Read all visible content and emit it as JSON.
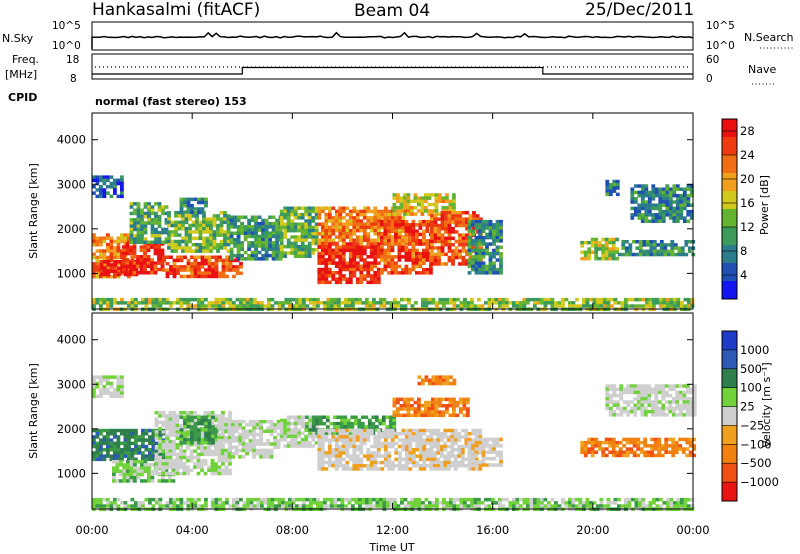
{
  "header": {
    "station": "Hankasalmi (fitACF)",
    "beam": "Beam 04",
    "date": "25/Dec/2011"
  },
  "strip": {
    "nsky_label": "N.Sky",
    "nsky_top_tick": "10^5",
    "nsky_bottom_tick": "10^0",
    "nsearch_label": "N.Search",
    "nsearch_top_tick": "10^5",
    "nsearch_bottom_tick": "10^0",
    "freq_label": "Freq.",
    "freq_unit": "[MHz]",
    "freq_top_tick": "18",
    "freq_bottom_tick": "8",
    "nave_label": "Nave",
    "nave_top_tick": "60",
    "nave_bottom_tick": "0",
    "cpid_label": "CPID",
    "cpid_text": "normal (fast stereo) 153"
  },
  "colors": {
    "power": [
      "#1414ee",
      "#1e50b4",
      "#2c7d8c",
      "#3c9a5a",
      "#64b432",
      "#d2c81e",
      "#f0a01e",
      "#f06e14",
      "#ee3a10",
      "#e81010"
    ],
    "velocity": [
      "#1e3cc8",
      "#2c5ab4",
      "#2f7f4c",
      "#3a9a48",
      "#72d23c",
      "#cfcfcf",
      "#cfcfcf",
      "#f0a020",
      "#f08010",
      "#f05014",
      "#e81414"
    ]
  },
  "chart_data": [
    {
      "type": "heatmap",
      "name": "power",
      "xlabel": "",
      "ylabel": "Slant Range [km]",
      "x_ticks": [
        "00:00",
        "04:00",
        "08:00",
        "12:00",
        "16:00",
        "20:00",
        "00:00"
      ],
      "xlim": [
        0,
        24
      ],
      "ylim": [
        200,
        4600
      ],
      "y_ticks": [
        "1000",
        "2000",
        "3000",
        "4000"
      ],
      "colorbar": {
        "label": "Power [dB]",
        "ticks": [
          "4",
          "8",
          "12",
          "16",
          "20",
          "24",
          "28"
        ],
        "range": [
          0,
          30
        ]
      },
      "regions": [
        {
          "t": [
            0.0,
            1.6
          ],
          "r": [
            900,
            1900
          ],
          "value": 22
        },
        {
          "t": [
            0.3,
            1.8
          ],
          "r": [
            950,
            1300
          ],
          "value": 29
        },
        {
          "t": [
            0.0,
            1.2
          ],
          "r": [
            2700,
            3200
          ],
          "value": 6
        },
        {
          "t": [
            1.2,
            2.8
          ],
          "r": [
            1000,
            1700
          ],
          "value": 27
        },
        {
          "t": [
            1.5,
            3.0
          ],
          "r": [
            1700,
            2600
          ],
          "value": 11
        },
        {
          "t": [
            2.8,
            6.0
          ],
          "r": [
            950,
            1400
          ],
          "value": 25
        },
        {
          "t": [
            3.0,
            5.5
          ],
          "r": [
            1500,
            2400
          ],
          "value": 13
        },
        {
          "t": [
            3.5,
            4.5
          ],
          "r": [
            2400,
            2700
          ],
          "value": 9
        },
        {
          "t": [
            5.5,
            7.5
          ],
          "r": [
            1300,
            2300
          ],
          "value": 10
        },
        {
          "t": [
            7.5,
            9.0
          ],
          "r": [
            1400,
            2500
          ],
          "value": 12
        },
        {
          "t": [
            9.0,
            11.5
          ],
          "r": [
            800,
            1700
          ],
          "value": 28
        },
        {
          "t": [
            9.0,
            12.5
          ],
          "r": [
            1700,
            2500
          ],
          "value": 22
        },
        {
          "t": [
            11.5,
            13.5
          ],
          "r": [
            1000,
            2200
          ],
          "value": 25
        },
        {
          "t": [
            12.0,
            14.5
          ],
          "r": [
            2300,
            2800
          ],
          "value": 17
        },
        {
          "t": [
            13.5,
            15.5
          ],
          "r": [
            1200,
            2400
          ],
          "value": 24
        },
        {
          "t": [
            15.0,
            16.3
          ],
          "r": [
            1000,
            2200
          ],
          "value": 9
        },
        {
          "t": [
            19.5,
            21.0
          ],
          "r": [
            1350,
            1800
          ],
          "value": 15
        },
        {
          "t": [
            21.0,
            24.0
          ],
          "r": [
            1400,
            1750
          ],
          "value": 9
        },
        {
          "t": [
            20.5,
            21.0
          ],
          "r": [
            2800,
            3100
          ],
          "value": 8
        },
        {
          "t": [
            21.5,
            24.0
          ],
          "r": [
            2200,
            3000
          ],
          "value": 8
        },
        {
          "t": [
            0.0,
            24.0
          ],
          "r": [
            200,
            450
          ],
          "value": 14
        }
      ]
    },
    {
      "type": "heatmap",
      "name": "velocity",
      "xlabel": "Time UT",
      "ylabel": "Slant Range [km]",
      "x_ticks": [
        "00:00",
        "04:00",
        "08:00",
        "12:00",
        "16:00",
        "20:00",
        "00:00"
      ],
      "xlim": [
        0,
        24
      ],
      "ylim": [
        200,
        4600
      ],
      "y_ticks": [
        "1000",
        "2000",
        "3000",
        "4000"
      ],
      "colorbar": {
        "label": "Velocity [m s⁻¹]",
        "ticks": [
          "1000",
          "500",
          "100",
          "25",
          "−25",
          "−100",
          "−500",
          "−1000"
        ]
      },
      "regions": [
        {
          "t": [
            0.0,
            1.2
          ],
          "r": [
            2700,
            3200
          ],
          "class": 5
        },
        {
          "t": [
            0.0,
            3.0
          ],
          "r": [
            1300,
            2000
          ],
          "class": 2
        },
        {
          "t": [
            0.8,
            3.3
          ],
          "r": [
            800,
            1300
          ],
          "class": 4
        },
        {
          "t": [
            2.5,
            5.5
          ],
          "r": [
            1000,
            2400
          ],
          "class": 5
        },
        {
          "t": [
            3.5,
            5.0
          ],
          "r": [
            1700,
            2300
          ],
          "class": 3
        },
        {
          "t": [
            5.0,
            7.5
          ],
          "r": [
            1400,
            2200
          ],
          "class": 5
        },
        {
          "t": [
            7.5,
            9.0
          ],
          "r": [
            1600,
            2300
          ],
          "class": 5
        },
        {
          "t": [
            8.5,
            12.0
          ],
          "r": [
            1900,
            2300
          ],
          "class": 3
        },
        {
          "t": [
            9.0,
            15.5
          ],
          "r": [
            1100,
            2000
          ],
          "class": 6
        },
        {
          "t": [
            12.0,
            15.0
          ],
          "r": [
            2300,
            2700
          ],
          "class": 8
        },
        {
          "t": [
            13.0,
            14.5
          ],
          "r": [
            3000,
            3200
          ],
          "class": 8
        },
        {
          "t": [
            15.0,
            16.3
          ],
          "r": [
            1200,
            1800
          ],
          "class": 6
        },
        {
          "t": [
            19.5,
            24.0
          ],
          "r": [
            1400,
            1800
          ],
          "class": 8
        },
        {
          "t": [
            20.5,
            24.0
          ],
          "r": [
            2300,
            3000
          ],
          "class": 5
        },
        {
          "t": [
            0.0,
            24.0
          ],
          "r": [
            200,
            450
          ],
          "class": 4
        }
      ]
    }
  ]
}
